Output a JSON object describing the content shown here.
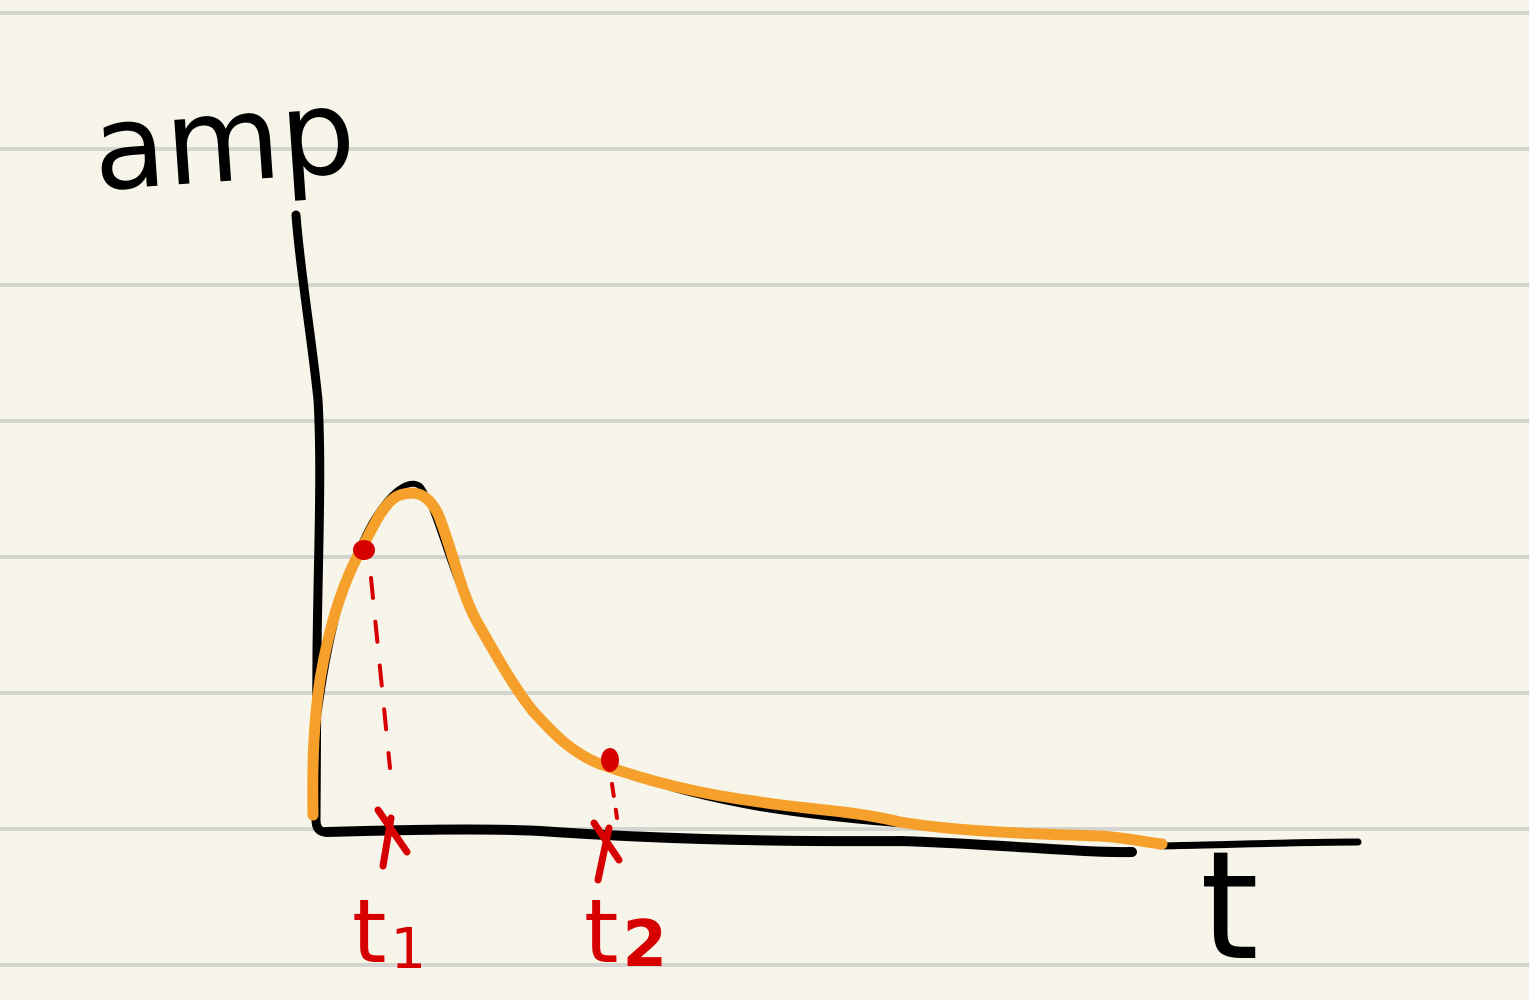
{
  "diagram": {
    "y_axis_label": "amp",
    "x_axis_label": "t",
    "markers": [
      {
        "label": "t₁",
        "base": "t",
        "sub": "1"
      },
      {
        "label": "t₂",
        "base": "t",
        "sub": "2"
      }
    ]
  },
  "colors": {
    "paper": "#f7f5ea",
    "ruled_line": "#d4d4d0",
    "ink": "#000000",
    "curve": "#f4a02a",
    "marker": "#d60000"
  }
}
